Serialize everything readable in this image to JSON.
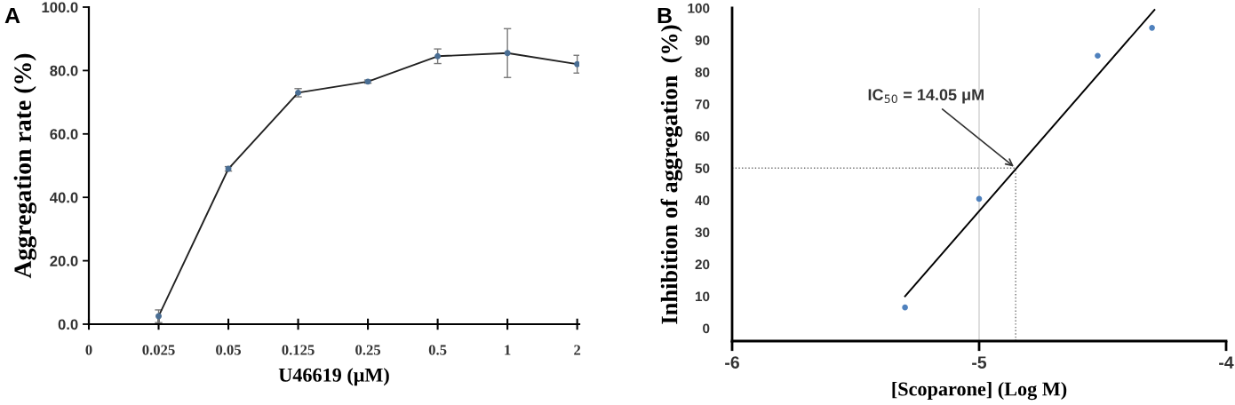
{
  "chart_data": [
    {
      "type": "line",
      "xlabel": "U46619 (μM)",
      "ylabel": "Aggregation rate (%)",
      "categories": [
        "0",
        "0.025",
        "0.05",
        "0.125",
        "0.25",
        "0.5",
        "1",
        "2"
      ],
      "series": [
        {
          "color": "#222222",
          "values": [
            null,
            2.5,
            49,
            73,
            76.5,
            84.5,
            85.5,
            82
          ],
          "errors": [
            null,
            2,
            0.7,
            1.3,
            0.5,
            2.3,
            7.7,
            2.8
          ]
        }
      ],
      "ylim": [
        0,
        100
      ],
      "yticks": [
        {
          "value": 0,
          "label": "0.0"
        },
        {
          "value": 20,
          "label": "20.0"
        },
        {
          "value": 40,
          "label": "40.0"
        },
        {
          "value": 60,
          "label": "60.0"
        },
        {
          "value": 80,
          "label": "80.0"
        },
        {
          "value": 100,
          "label": "100.0"
        }
      ],
      "marker": "circle",
      "grid": false,
      "legend": false,
      "annotations": [
        "A"
      ]
    },
    {
      "type": "scatter",
      "xlabel": "[Scoparone] (Log M)",
      "ylabel": "Inhibition of aggregation  (%)",
      "series": [
        {
          "type": "scatter",
          "color": "#4f81bd",
          "x": [
            -5.3,
            -5.0,
            -4.52,
            -4.3
          ],
          "values": [
            6.5,
            40.4,
            85.1,
            93.8
          ]
        },
        {
          "type": "line",
          "color": "#000000",
          "marker": "none",
          "x": [
            -5.3,
            -4.29
          ],
          "values": [
            10,
            99.4
          ]
        }
      ],
      "xlim": [
        -6,
        -4
      ],
      "xticks": [
        -6,
        -5,
        -4
      ],
      "ylim": [
        -4,
        100
      ],
      "yticks": [
        0,
        10,
        20,
        30,
        40,
        50,
        60,
        70,
        80,
        90,
        100
      ],
      "ref_lines": [
        {
          "axis": "x",
          "value": -5,
          "color": "#d0d0d0",
          "line_style": "solid"
        },
        {
          "axis": "y",
          "value": 50,
          "color": "#707070",
          "line_style": "dotted"
        },
        {
          "axis": "x",
          "value": -4.852,
          "color": "#707070",
          "line_style": "dotted"
        }
      ],
      "marker": "circle",
      "grid": false,
      "legend": false,
      "annotations": [
        {
          "text": "IC$_{50}$ = 14.05 μM",
          "x": -4.852,
          "y": 50
        },
        "B"
      ]
    }
  ]
}
